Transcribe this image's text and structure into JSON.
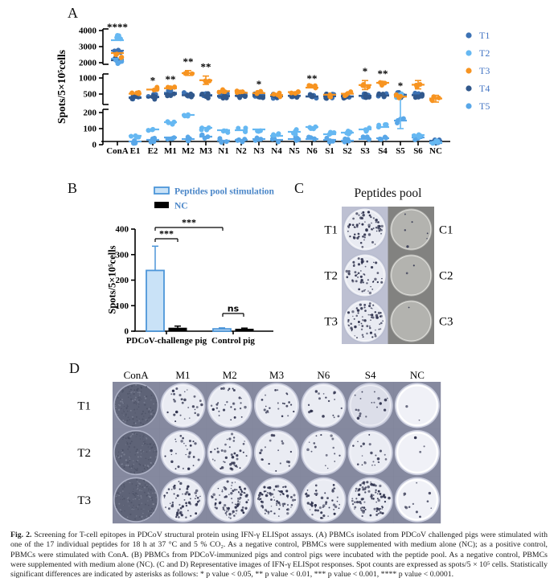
{
  "panels": {
    "a": {
      "label": "A"
    },
    "b": {
      "label": "B"
    },
    "c": {
      "label": "C"
    },
    "d": {
      "label": "D"
    }
  },
  "colors": {
    "t1": "#3C72B4",
    "t2": "#66B8F2",
    "t3": "#F79421",
    "t4": "#31588C",
    "t5": "#59A7E8",
    "legend_text": "#4576C4",
    "bar_fill": "#C9E2F7",
    "bar_border": "#4D96D9",
    "axis": "#000000"
  },
  "chart_data": [
    {
      "id": "panel_a",
      "type": "scatter",
      "title": "",
      "ylabel": "Spots/5×10⁵cells",
      "categories": [
        "ConA",
        "E1",
        "E2",
        "M1",
        "M2",
        "M3",
        "N1",
        "N2",
        "N3",
        "N4",
        "N5",
        "N6",
        "S1",
        "S2",
        "S3",
        "S4",
        "S5",
        "S6",
        "NC"
      ],
      "axis_break_segments": [
        [
          0,
          200
        ],
        [
          250,
          1000
        ],
        [
          2000,
          4000
        ]
      ],
      "yticks": [
        [
          0,
          100,
          200
        ],
        [
          500,
          1000
        ],
        [
          2000,
          3000,
          4000
        ]
      ],
      "legend_position": "right",
      "series": [
        {
          "name": "T1",
          "color": "#3C72B4",
          "values": [
            2750,
            400,
            420,
            540,
            480,
            470,
            450,
            450,
            460,
            440,
            450,
            430,
            440,
            430,
            450,
            470,
            480,
            480,
            25
          ]
        },
        {
          "name": "T2",
          "color": "#66B8F2",
          "values": [
            3400,
            55,
            95,
            140,
            185,
            105,
            90,
            90,
            95,
            55,
            80,
            110,
            65,
            75,
            95,
            110,
            430,
            60,
            15
          ]
        },
        {
          "name": "T3",
          "color": "#F79421",
          "values": [
            2600,
            510,
            640,
            680,
            1150,
            930,
            590,
            540,
            530,
            470,
            560,
            700,
            480,
            510,
            780,
            850,
            420,
            790,
            360
          ]
        },
        {
          "name": "T4",
          "color": "#31588C",
          "values": [
            2150,
            380,
            400,
            500,
            460,
            450,
            430,
            440,
            440,
            430,
            440,
            420,
            430,
            420,
            440,
            450,
            460,
            460,
            20
          ]
        },
        {
          "name": "T5",
          "color": "#59A7E8",
          "values": [
            2250,
            20,
            30,
            45,
            35,
            50,
            25,
            30,
            35,
            30,
            35,
            35,
            30,
            25,
            35,
            40,
            150,
            45,
            10
          ]
        }
      ],
      "error_bars": [
        {
          "category": "M2",
          "series": "T3",
          "lo": 1080,
          "hi": 1230
        },
        {
          "category": "M3",
          "series": "T3",
          "lo": 800,
          "hi": 1060
        },
        {
          "category": "S3",
          "series": "T3",
          "lo": 640,
          "hi": 920
        },
        {
          "category": "S6",
          "series": "T3",
          "lo": 660,
          "hi": 920
        },
        {
          "category": "S5",
          "series": "T2",
          "lo": 100,
          "hi": 460
        },
        {
          "category": "NC",
          "series": "T3",
          "lo": 250,
          "hi": 460
        }
      ],
      "significance": [
        {
          "category": "ConA",
          "stars": "****"
        },
        {
          "category": "E2",
          "stars": "*"
        },
        {
          "category": "M1",
          "stars": "**"
        },
        {
          "category": "M2",
          "stars": "**"
        },
        {
          "category": "M3",
          "stars": "**"
        },
        {
          "category": "N3",
          "stars": "*"
        },
        {
          "category": "N6",
          "stars": "**"
        },
        {
          "category": "S3",
          "stars": "*"
        },
        {
          "category": "S4",
          "stars": "**"
        },
        {
          "category": "S5",
          "stars": "*"
        }
      ]
    },
    {
      "id": "panel_b",
      "type": "bar",
      "title": "",
      "ylabel": "Spots/5×10⁵cells",
      "categories": [
        "PDCoV-challenge pig",
        "Control pig"
      ],
      "ylim": [
        0,
        400
      ],
      "yticks": [
        0,
        100,
        200,
        300,
        400
      ],
      "legend_position": "top",
      "series": [
        {
          "name": "Peptides pool stimulation",
          "fill": "#C9E2F7",
          "border": "#4D96D9",
          "values": [
            238,
            9
          ],
          "errors": [
            95,
            4
          ]
        },
        {
          "name": "NC",
          "fill": "#000000",
          "border": "#000000",
          "values": [
            12,
            8
          ],
          "errors": [
            8,
            4
          ]
        }
      ],
      "significance": [
        {
          "label": "***",
          "span": "inner-group1"
        },
        {
          "label": "***",
          "span": "across-groups"
        },
        {
          "label": "ns",
          "span": "inner-group2"
        }
      ]
    }
  ],
  "panel_c": {
    "title": "Peptides pool",
    "rows": [
      {
        "left_label": "T1",
        "right_label": "C1",
        "left_spots": 65,
        "right_spots": 6
      },
      {
        "left_label": "T2",
        "right_label": "C2",
        "left_spots": 52,
        "right_spots": 2
      },
      {
        "left_label": "T3",
        "right_label": "C3",
        "left_spots": 72,
        "right_spots": 1
      }
    ]
  },
  "panel_d": {
    "columns": [
      "ConA",
      "M1",
      "M2",
      "M3",
      "N6",
      "S4",
      "NC"
    ],
    "rows": [
      {
        "label": "T1",
        "spots": [
          null,
          30,
          28,
          22,
          18,
          18,
          2
        ]
      },
      {
        "label": "T2",
        "spots": [
          null,
          28,
          40,
          18,
          16,
          22,
          3
        ]
      },
      {
        "label": "T3",
        "spots": [
          null,
          65,
          85,
          75,
          55,
          85,
          12
        ]
      }
    ]
  },
  "caption": {
    "prefix": "Fig. 2.",
    "text": "Screening for T-cell epitopes in PDCoV structural protein using IFN-γ ELISpot assays. (A) PBMCs isolated from PDCoV challenged pigs were stimulated with one of the 17 individual peptides for 18 h at 37 °C and 5 % CO₂. As a negative control, PBMCs were supplemented with medium alone (NC); as a positive control, PBMCs were stimulated with ConA. (B) PBMCs from PDCoV-immunized pigs and control pigs were incubated with the peptide pool. As a negative control, PBMCs were supplemented with medium alone (NC). (C and D) Representative images of IFN-γ ELISpot responses. Spot counts are expressed as spots/5 × 10⁵ cells. Statistically significant differences are indicated by asterisks as follows: * p value < 0.05, ** p value < 0.01, *** p value < 0.001, **** p value < 0.0001."
  }
}
